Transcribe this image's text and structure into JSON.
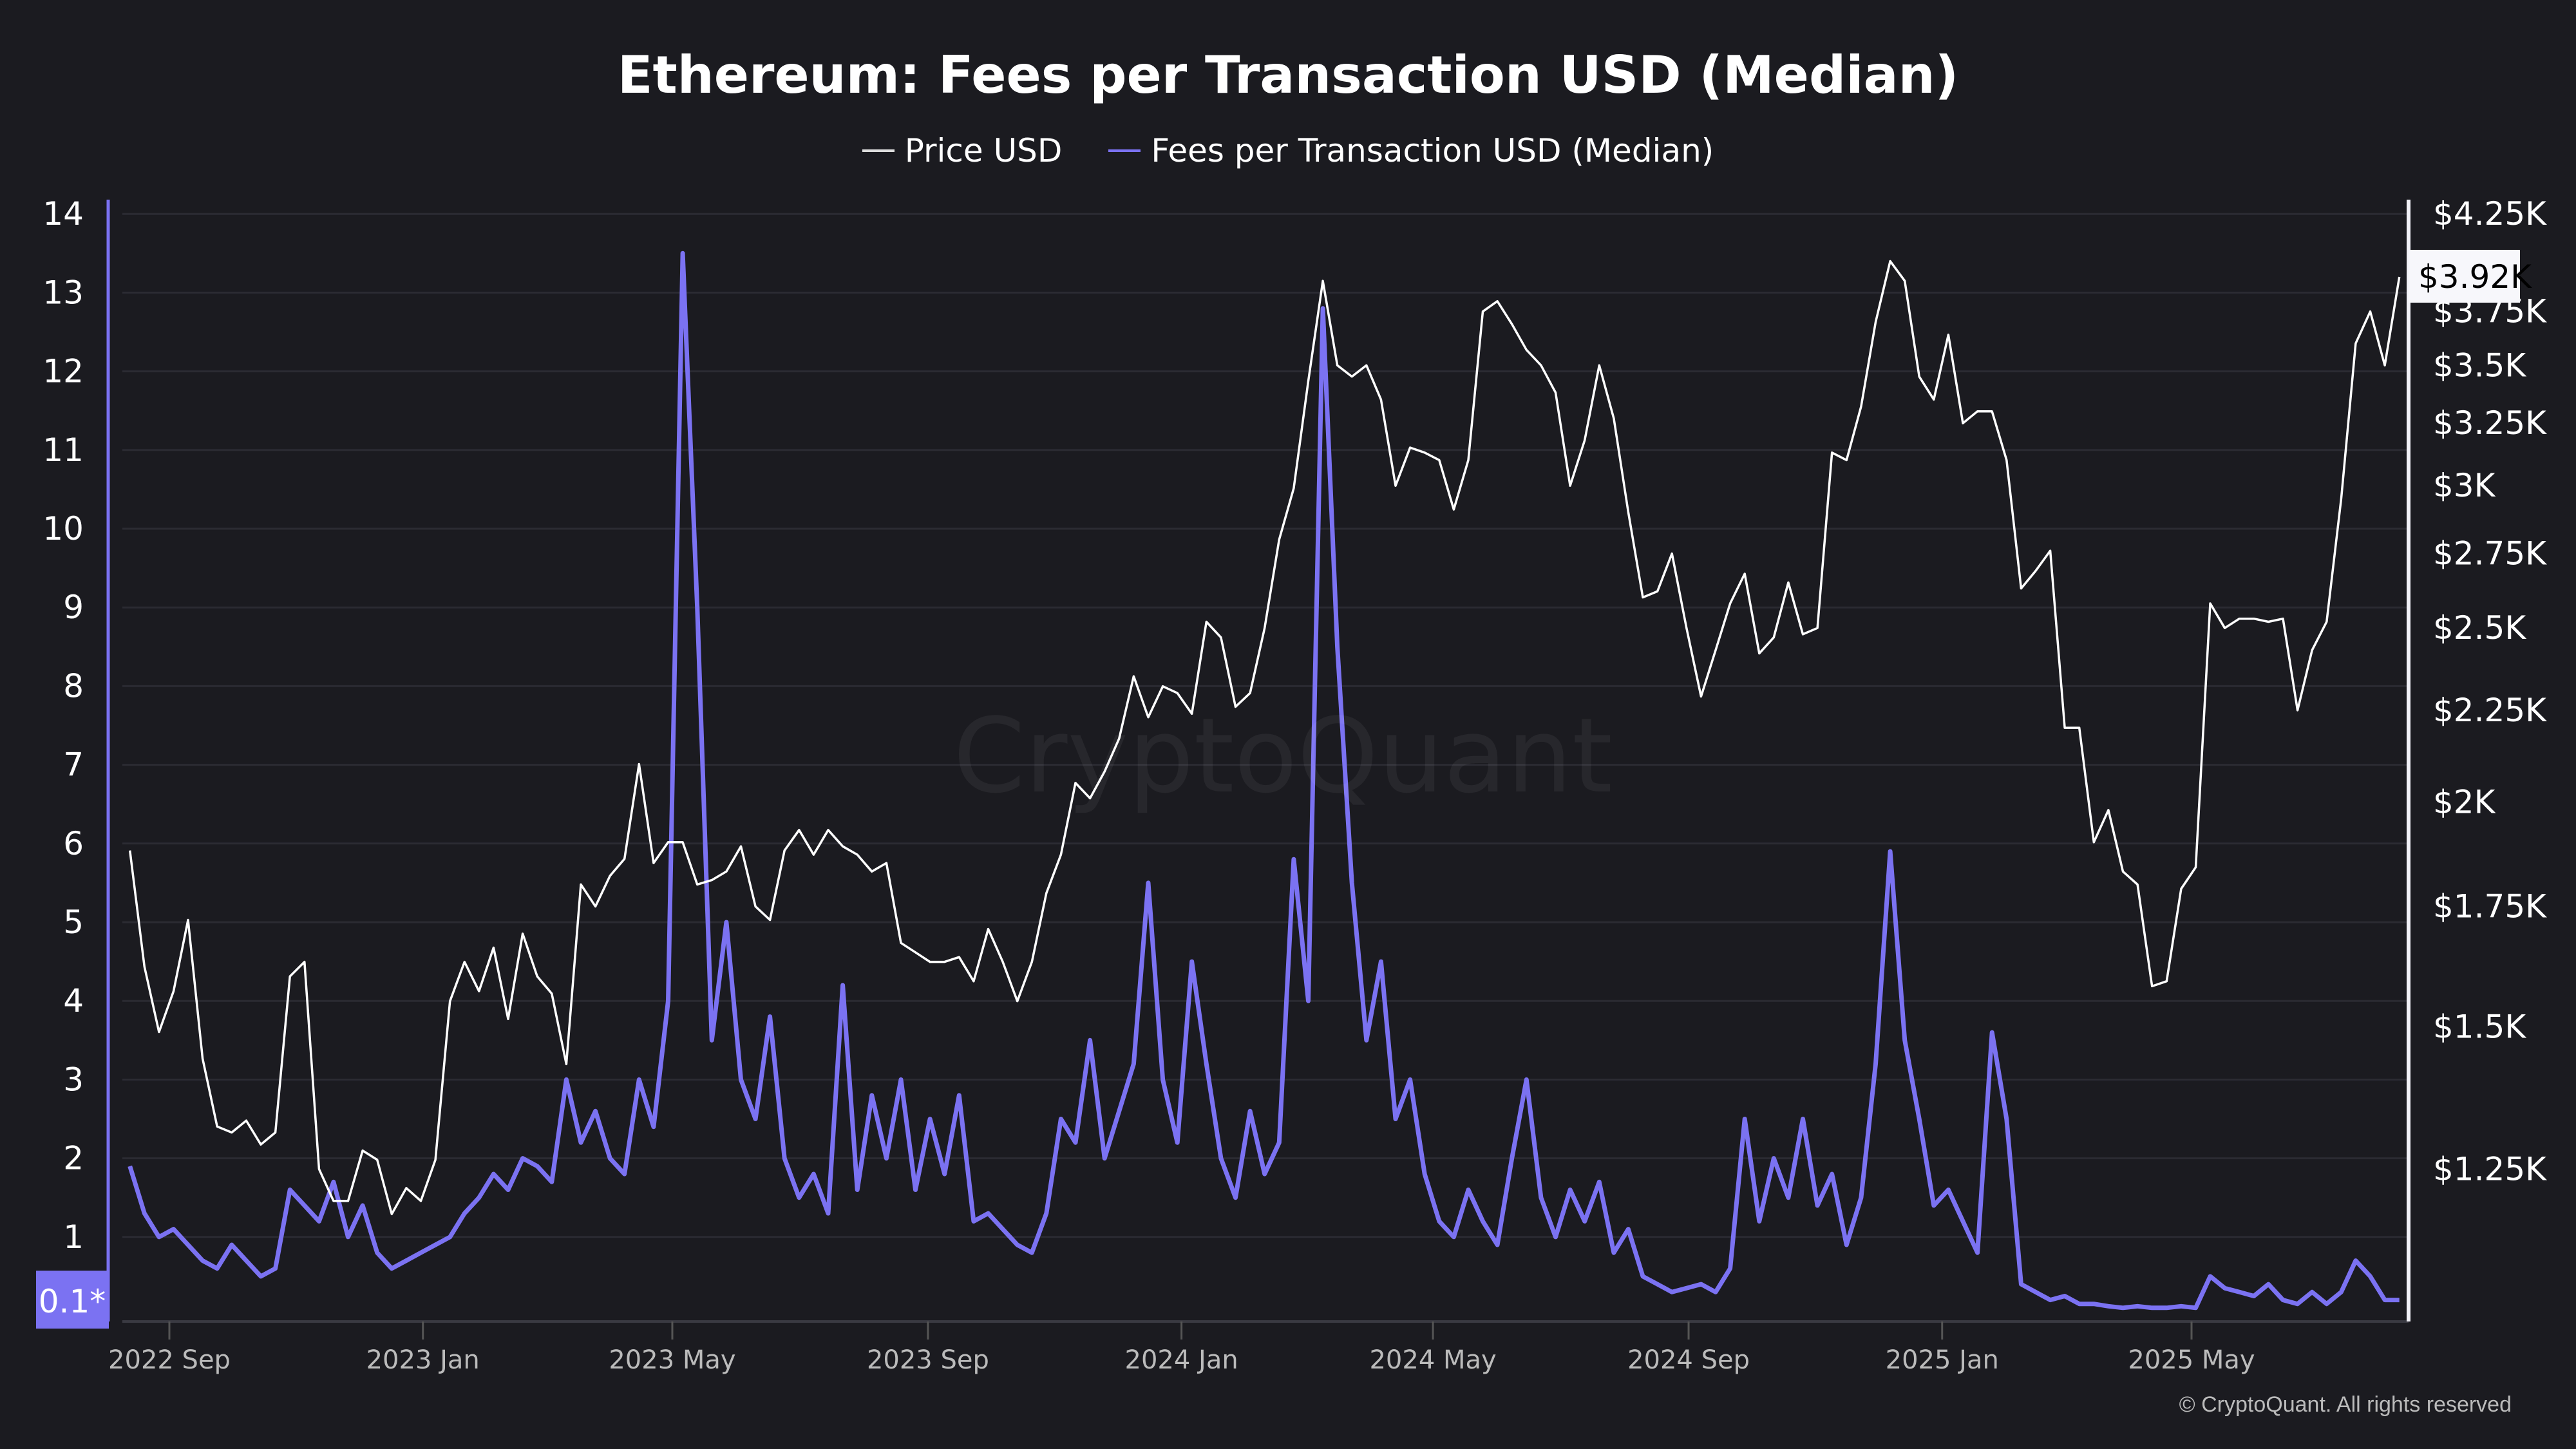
{
  "chart_data": {
    "type": "line",
    "title": "Ethereum: Fees per Transaction USD (Median)",
    "legend_position": "top",
    "grid": true,
    "left_axis": {
      "ticks": [
        1,
        2,
        3,
        4,
        5,
        6,
        7,
        8,
        9,
        10,
        11,
        12,
        13,
        14
      ],
      "min_label": "0.1*",
      "color": "#7b72f2"
    },
    "right_axis": {
      "scale": "log",
      "tick_labels": [
        "$4.25K",
        "$3.75K",
        "$3.5K",
        "$3.25K",
        "$3K",
        "$2.75K",
        "$2.5K",
        "$2.25K",
        "$2K",
        "$1.75K",
        "$1.5K",
        "$1.25K"
      ],
      "tick_values": [
        4250,
        3750,
        3500,
        3250,
        3000,
        2750,
        2500,
        2250,
        2000,
        1750,
        1500,
        1250
      ],
      "current_label": "$3.92K",
      "current_value": 3920
    },
    "x_ticks": [
      {
        "label": "2022 Sep",
        "date": "2022-09-01"
      },
      {
        "label": "2023 Jan",
        "date": "2023-01-01"
      },
      {
        "label": "2023 May",
        "date": "2023-05-01"
      },
      {
        "label": "2023 Sep",
        "date": "2023-09-01"
      },
      {
        "label": "2024 Jan",
        "date": "2024-01-01"
      },
      {
        "label": "2024 May",
        "date": "2024-05-01"
      },
      {
        "label": "2024 Sep",
        "date": "2024-09-01"
      },
      {
        "label": "2025 Jan",
        "date": "2025-01-01"
      },
      {
        "label": "2025 May",
        "date": "2025-05-01"
      }
    ],
    "x": [
      "2022-08-13",
      "2022-08-20",
      "2022-08-27",
      "2022-09-03",
      "2022-09-10",
      "2022-09-17",
      "2022-09-24",
      "2022-10-01",
      "2022-10-08",
      "2022-10-15",
      "2022-10-22",
      "2022-10-29",
      "2022-11-05",
      "2022-11-12",
      "2022-11-19",
      "2022-11-26",
      "2022-12-03",
      "2022-12-10",
      "2022-12-17",
      "2022-12-24",
      "2022-12-31",
      "2023-01-07",
      "2023-01-14",
      "2023-01-21",
      "2023-01-28",
      "2023-02-04",
      "2023-02-11",
      "2023-02-18",
      "2023-02-25",
      "2023-03-04",
      "2023-03-11",
      "2023-03-18",
      "2023-03-25",
      "2023-04-01",
      "2023-04-08",
      "2023-04-15",
      "2023-04-22",
      "2023-04-29",
      "2023-05-06",
      "2023-05-13",
      "2023-05-20",
      "2023-05-27",
      "2023-06-03",
      "2023-06-10",
      "2023-06-17",
      "2023-06-24",
      "2023-07-01",
      "2023-07-08",
      "2023-07-15",
      "2023-07-22",
      "2023-07-29",
      "2023-08-05",
      "2023-08-12",
      "2023-08-19",
      "2023-08-26",
      "2023-09-02",
      "2023-09-09",
      "2023-09-16",
      "2023-09-23",
      "2023-09-30",
      "2023-10-07",
      "2023-10-14",
      "2023-10-21",
      "2023-10-28",
      "2023-11-04",
      "2023-11-11",
      "2023-11-18",
      "2023-11-25",
      "2023-12-02",
      "2023-12-09",
      "2023-12-16",
      "2023-12-23",
      "2023-12-30",
      "2024-01-06",
      "2024-01-13",
      "2024-01-20",
      "2024-01-27",
      "2024-02-03",
      "2024-02-10",
      "2024-02-17",
      "2024-02-24",
      "2024-03-02",
      "2024-03-09",
      "2024-03-16",
      "2024-03-23",
      "2024-03-30",
      "2024-04-06",
      "2024-04-13",
      "2024-04-20",
      "2024-04-27",
      "2024-05-04",
      "2024-05-11",
      "2024-05-18",
      "2024-05-25",
      "2024-06-01",
      "2024-06-08",
      "2024-06-15",
      "2024-06-22",
      "2024-06-29",
      "2024-07-06",
      "2024-07-13",
      "2024-07-20",
      "2024-07-27",
      "2024-08-03",
      "2024-08-10",
      "2024-08-17",
      "2024-08-24",
      "2024-08-31",
      "2024-09-07",
      "2024-09-14",
      "2024-09-21",
      "2024-09-28",
      "2024-10-05",
      "2024-10-12",
      "2024-10-19",
      "2024-10-26",
      "2024-11-02",
      "2024-11-09",
      "2024-11-16",
      "2024-11-23",
      "2024-11-30",
      "2024-12-07",
      "2024-12-14",
      "2024-12-21",
      "2024-12-28",
      "2025-01-04",
      "2025-01-11",
      "2025-01-18",
      "2025-01-25",
      "2025-02-01",
      "2025-02-08",
      "2025-02-15",
      "2025-02-22",
      "2025-03-01",
      "2025-03-08",
      "2025-03-15",
      "2025-03-22",
      "2025-03-29",
      "2025-04-05",
      "2025-04-12",
      "2025-04-19",
      "2025-04-26",
      "2025-05-03",
      "2025-05-10",
      "2025-05-17",
      "2025-05-24",
      "2025-05-31",
      "2025-06-07",
      "2025-06-14",
      "2025-06-21",
      "2025-06-28",
      "2025-07-05",
      "2025-07-12",
      "2025-07-19",
      "2025-07-26",
      "2025-08-02",
      "2025-08-09"
    ],
    "series": [
      {
        "name": "Price USD",
        "axis": "right",
        "color": "#ffffff",
        "values": [
          1880,
          1620,
          1490,
          1570,
          1720,
          1440,
          1320,
          1310,
          1330,
          1290,
          1310,
          1600,
          1630,
          1250,
          1200,
          1200,
          1280,
          1265,
          1180,
          1220,
          1200,
          1265,
          1550,
          1630,
          1570,
          1660,
          1515,
          1690,
          1600,
          1565,
          1430,
          1800,
          1750,
          1820,
          1860,
          2100,
          1850,
          1900,
          1900,
          1800,
          1810,
          1830,
          1890,
          1750,
          1720,
          1880,
          1930,
          1870,
          1930,
          1890,
          1870,
          1830,
          1850,
          1670,
          1650,
          1630,
          1630,
          1640,
          1590,
          1700,
          1630,
          1550,
          1630,
          1780,
          1870,
          2050,
          2010,
          2080,
          2170,
          2350,
          2230,
          2320,
          2300,
          2240,
          2520,
          2470,
          2260,
          2300,
          2500,
          2800,
          2990,
          3430,
          3900,
          3500,
          3450,
          3500,
          3350,
          3000,
          3150,
          3130,
          3100,
          2910,
          3100,
          3750,
          3800,
          3690,
          3570,
          3500,
          3380,
          3000,
          3180,
          3500,
          3270,
          2900,
          2600,
          2620,
          2750,
          2500,
          2290,
          2430,
          2580,
          2680,
          2420,
          2470,
          2650,
          2480,
          2500,
          3130,
          3100,
          3320,
          3700,
          4000,
          3900,
          3450,
          3350,
          3640,
          3250,
          3300,
          3300,
          3100,
          2630,
          2690,
          2760,
          2200,
          2200,
          1900,
          1980,
          1830,
          1800,
          1580,
          1590,
          1790,
          1840,
          2580,
          2500,
          2530,
          2530,
          2520,
          2530,
          2250,
          2430,
          2520,
          2950,
          3600,
          3750,
          3500,
          3920
        ]
      },
      {
        "name": "Fees per Transaction USD (Median)",
        "axis": "left",
        "color": "#7b72f2",
        "values": [
          1.9,
          1.3,
          1.0,
          1.1,
          0.9,
          0.7,
          0.6,
          0.9,
          0.7,
          0.5,
          0.6,
          1.6,
          1.4,
          1.2,
          1.7,
          1.0,
          1.4,
          0.8,
          0.6,
          0.7,
          0.8,
          0.9,
          1.0,
          1.3,
          1.5,
          1.8,
          1.6,
          2.0,
          1.9,
          1.7,
          3.0,
          2.2,
          2.6,
          2.0,
          1.8,
          3.0,
          2.4,
          4.0,
          13.5,
          9.0,
          3.5,
          5.0,
          3.0,
          2.5,
          3.8,
          2.0,
          1.5,
          1.8,
          1.3,
          4.2,
          1.6,
          2.8,
          2.0,
          3.0,
          1.6,
          2.5,
          1.8,
          2.8,
          1.2,
          1.3,
          1.1,
          0.9,
          0.8,
          1.3,
          2.5,
          2.2,
          3.5,
          2.0,
          2.6,
          3.2,
          5.5,
          3.0,
          2.2,
          4.5,
          3.2,
          2.0,
          1.5,
          2.6,
          1.8,
          2.2,
          5.8,
          4.0,
          12.8,
          8.5,
          5.5,
          3.5,
          4.5,
          2.5,
          3.0,
          1.8,
          1.2,
          1.0,
          1.6,
          1.2,
          0.9,
          2.0,
          3.0,
          1.5,
          1.0,
          1.6,
          1.2,
          1.7,
          0.8,
          1.1,
          0.5,
          0.4,
          0.3,
          0.35,
          0.4,
          0.3,
          0.6,
          2.5,
          1.2,
          2.0,
          1.5,
          2.5,
          1.4,
          1.8,
          0.9,
          1.5,
          3.2,
          5.9,
          3.5,
          2.5,
          1.4,
          1.6,
          1.2,
          0.8,
          3.6,
          2.5,
          0.4,
          0.3,
          0.2,
          0.25,
          0.15,
          0.15,
          0.12,
          0.1,
          0.12,
          0.1,
          0.1,
          0.12,
          0.1,
          0.5,
          0.35,
          0.3,
          0.25,
          0.4,
          0.2,
          0.15,
          0.3,
          0.15,
          0.3,
          0.7,
          0.5,
          0.2,
          0.2
        ]
      }
    ]
  },
  "watermark": "CryptoQuant",
  "copyright": "© CryptoQuant. All rights reserved"
}
